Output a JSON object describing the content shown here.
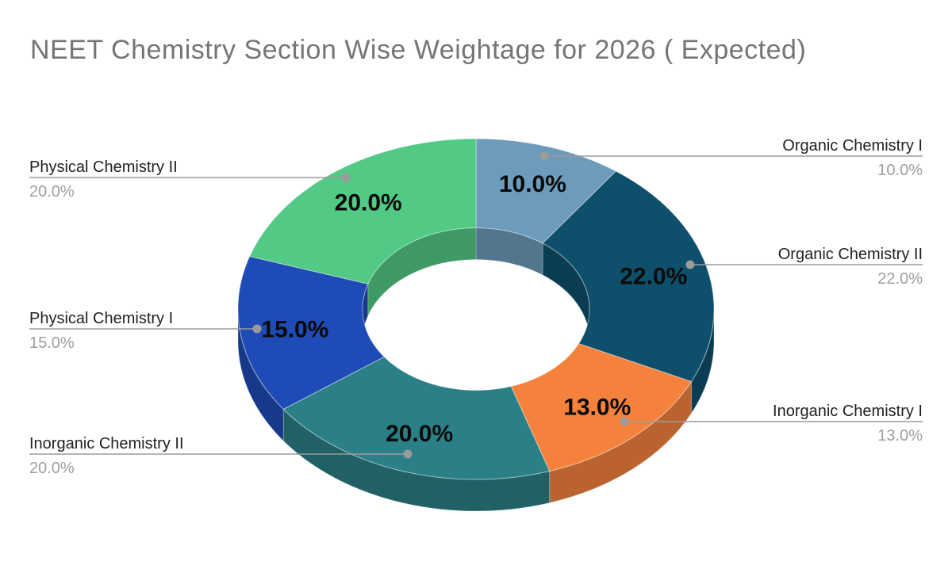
{
  "title": "NEET Chemistry Section Wise Weightage for 2026 ( Expected)",
  "chart_data": {
    "type": "pie",
    "style": "3d-donut",
    "title": "NEET Chemistry Section Wise Weightage for 2026 ( Expected)",
    "unit": "%",
    "direction": "clockwise",
    "start_angle_deg": 0,
    "legend_position": "labeled-callouts",
    "slices": [
      {
        "label": "Organic Chemistry I",
        "value": 10.0,
        "display": "10.0%",
        "color": "#6C9BBB"
      },
      {
        "label": "Organic Chemistry II",
        "value": 22.0,
        "display": "22.0%",
        "color": "#0E506C"
      },
      {
        "label": "Inorganic Chemistry I",
        "value": 13.0,
        "display": "13.0%",
        "color": "#F5823C"
      },
      {
        "label": "Inorganic Chemistry II",
        "value": 20.0,
        "display": "20.0%",
        "color": "#2B7F86"
      },
      {
        "label": "Physical Chemistry I",
        "value": 15.0,
        "display": "15.0%",
        "color": "#1E4BB5"
      },
      {
        "label": "Physical Chemistry II",
        "value": 20.0,
        "display": "20.0%",
        "color": "#52C985"
      }
    ],
    "colors": {
      "background": "#FFFFFF",
      "title_text": "#757575",
      "label_text": "#1F1F1F",
      "percent_text": "#9E9E9E",
      "callout_line": "#9B9B9B",
      "slice_value_text": "#0A0A0A"
    }
  }
}
